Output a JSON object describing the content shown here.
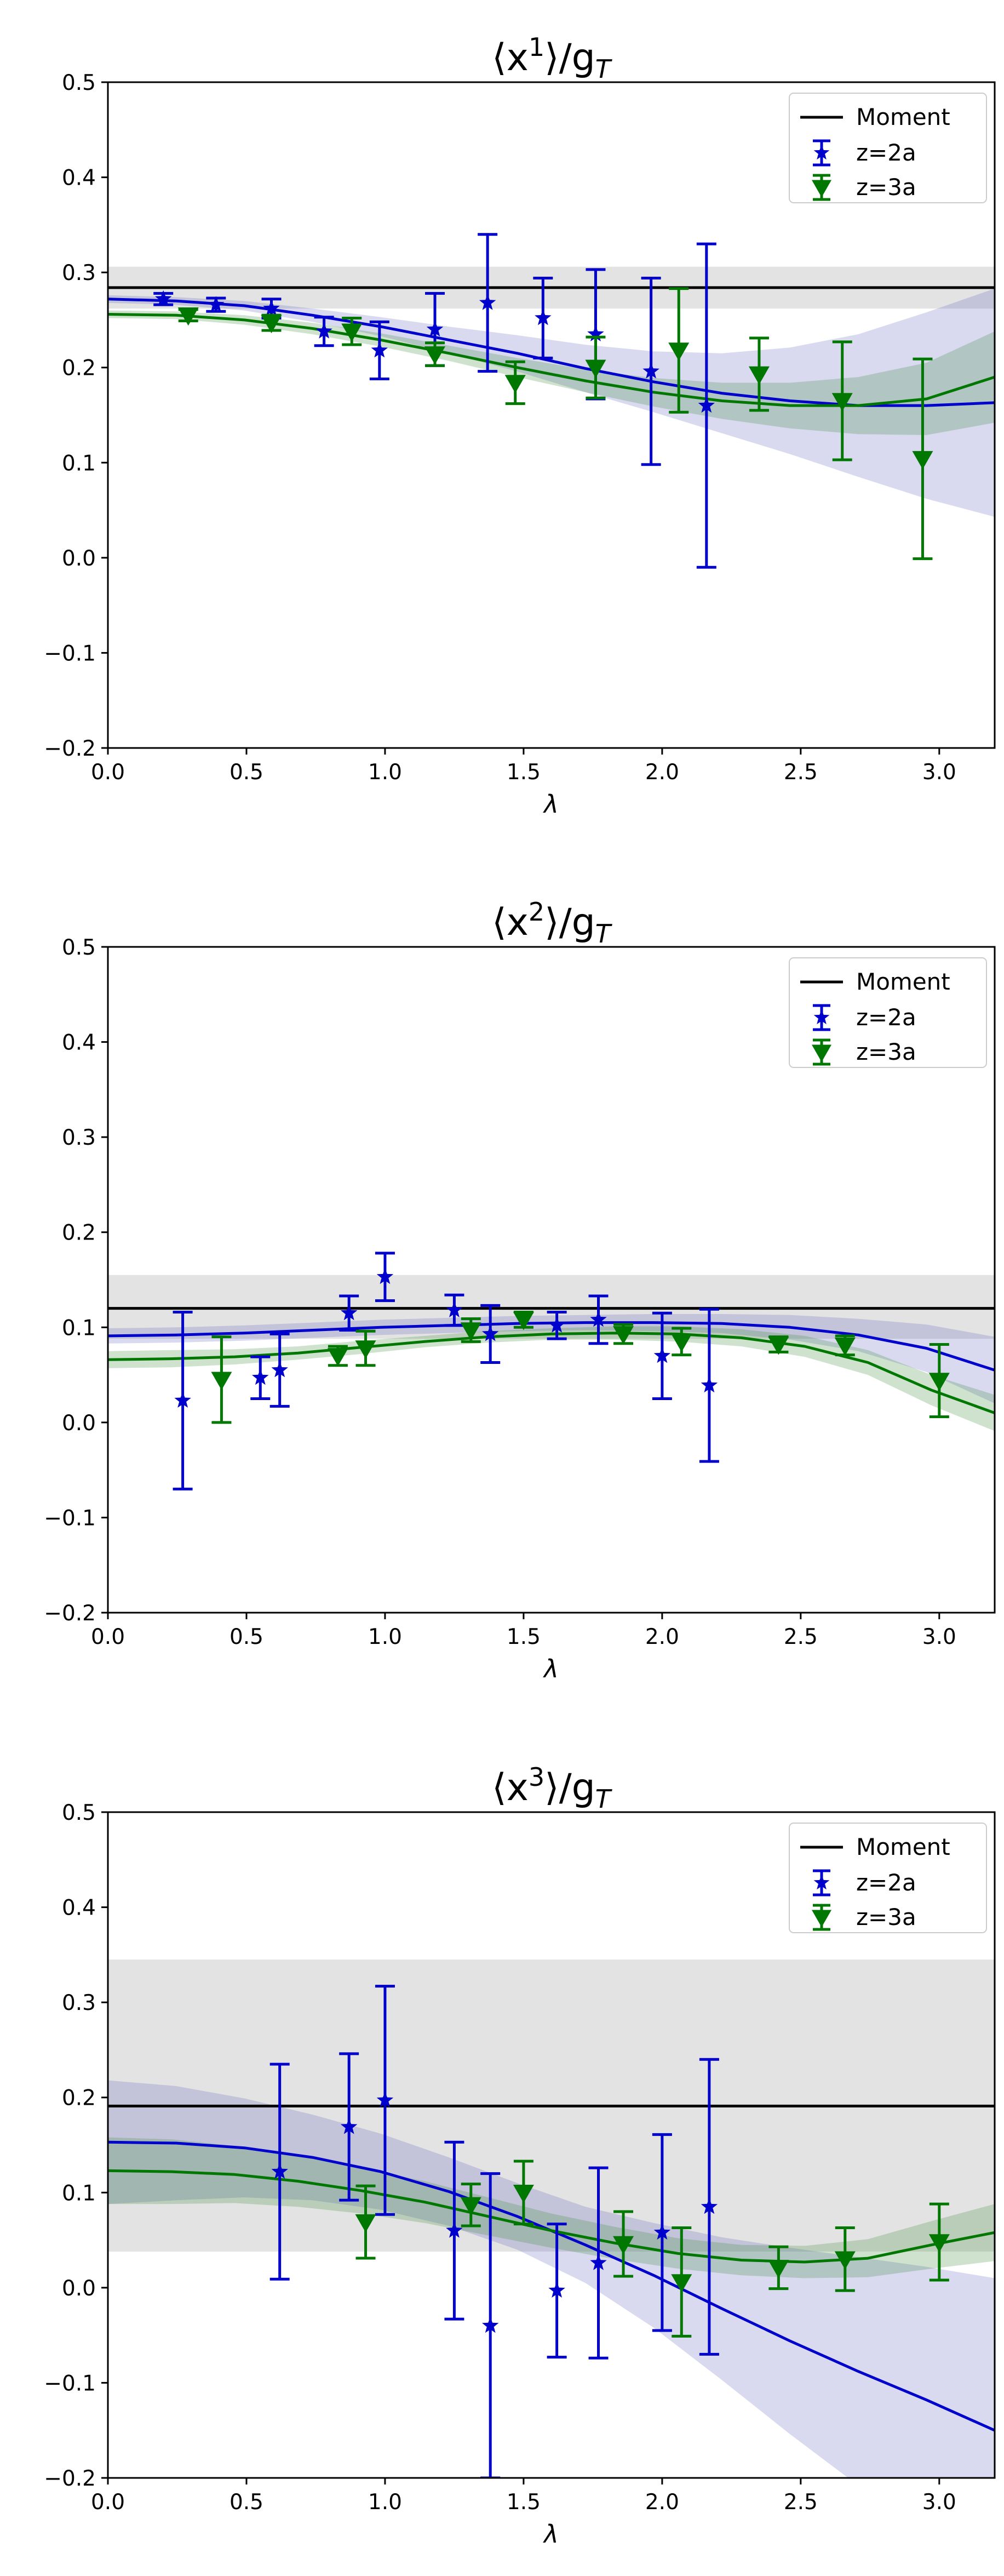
{
  "chart_data": [
    {
      "type": "errorbar",
      "title": "⟨x¹⟩/g_T",
      "title_parts": {
        "pre": "⟨x",
        "sup": "1",
        "mid": "⟩/g",
        "sub": "T"
      },
      "xlabel": "λ",
      "xlim": [
        0.0,
        3.2
      ],
      "ylim": [
        -0.2,
        0.5
      ],
      "xticks": [
        0.0,
        0.5,
        1.0,
        1.5,
        2.0,
        2.5,
        3.0
      ],
      "yticks": [
        -0.2,
        -0.1,
        0.0,
        0.1,
        0.2,
        0.3,
        0.4,
        0.5
      ],
      "moment": {
        "value": 0.284,
        "band": [
          0.262,
          0.306
        ]
      },
      "legend": {
        "moment": "Moment",
        "z2": "z=2a",
        "z3": "z=3a",
        "position": "top-right"
      },
      "series": [
        {
          "name": "z=2a",
          "color": "#0000cc",
          "marker": "star",
          "points": [
            {
              "x": 0.2,
              "y": 0.272,
              "err": 0.006
            },
            {
              "x": 0.39,
              "y": 0.266,
              "err": 0.007
            },
            {
              "x": 0.59,
              "y": 0.262,
              "err": 0.01
            },
            {
              "x": 0.78,
              "y": 0.238,
              "err": 0.015
            },
            {
              "x": 0.98,
              "y": 0.218,
              "err": 0.03
            },
            {
              "x": 1.18,
              "y": 0.24,
              "err": 0.038
            },
            {
              "x": 1.37,
              "y": 0.268,
              "err": 0.072
            },
            {
              "x": 1.57,
              "y": 0.252,
              "err": 0.042
            },
            {
              "x": 1.76,
              "y": 0.235,
              "err": 0.068
            },
            {
              "x": 1.96,
              "y": 0.196,
              "err": 0.098
            },
            {
              "x": 2.16,
              "y": 0.16,
              "err": 0.17
            }
          ],
          "fit": [
            0.272,
            0.27,
            0.265,
            0.255,
            0.243,
            0.229,
            0.215,
            0.199,
            0.185,
            0.173,
            0.165,
            0.16,
            0.16,
            0.163
          ],
          "fit_err": [
            0.004,
            0.004,
            0.005,
            0.007,
            0.01,
            0.014,
            0.019,
            0.025,
            0.032,
            0.042,
            0.056,
            0.075,
            0.098,
            0.12
          ]
        },
        {
          "name": "z=3a",
          "color": "#007700",
          "marker": "triangle-down",
          "points": [
            {
              "x": 0.29,
              "y": 0.255,
              "err": 0.006
            },
            {
              "x": 0.59,
              "y": 0.247,
              "err": 0.008
            },
            {
              "x": 0.88,
              "y": 0.238,
              "err": 0.014
            },
            {
              "x": 1.18,
              "y": 0.214,
              "err": 0.012
            },
            {
              "x": 1.47,
              "y": 0.184,
              "err": 0.022
            },
            {
              "x": 1.76,
              "y": 0.2,
              "err": 0.032
            },
            {
              "x": 2.06,
              "y": 0.218,
              "err": 0.065
            },
            {
              "x": 2.35,
              "y": 0.193,
              "err": 0.038
            },
            {
              "x": 2.65,
              "y": 0.165,
              "err": 0.062
            },
            {
              "x": 2.94,
              "y": 0.104,
              "err": 0.105
            }
          ],
          "fit": [
            0.256,
            0.255,
            0.25,
            0.241,
            0.229,
            0.215,
            0.2,
            0.186,
            0.174,
            0.165,
            0.16,
            0.16,
            0.167,
            0.19
          ],
          "fit_err": [
            0.004,
            0.004,
            0.005,
            0.006,
            0.007,
            0.008,
            0.01,
            0.012,
            0.015,
            0.019,
            0.024,
            0.03,
            0.038,
            0.048
          ]
        }
      ]
    },
    {
      "type": "errorbar",
      "title": "⟨x²⟩/g_T",
      "title_parts": {
        "pre": "⟨x",
        "sup": "2",
        "mid": "⟩/g",
        "sub": "T"
      },
      "xlabel": "λ",
      "xlim": [
        0.0,
        3.2
      ],
      "ylim": [
        -0.2,
        0.5
      ],
      "xticks": [
        0.0,
        0.5,
        1.0,
        1.5,
        2.0,
        2.5,
        3.0
      ],
      "yticks": [
        -0.2,
        -0.1,
        0.0,
        0.1,
        0.2,
        0.3,
        0.4,
        0.5
      ],
      "moment": {
        "value": 0.12,
        "band": [
          0.088,
          0.155
        ]
      },
      "legend": {
        "moment": "Moment",
        "z2": "z=2a",
        "z3": "z=3a",
        "position": "top-right"
      },
      "series": [
        {
          "name": "z=2a",
          "color": "#0000cc",
          "marker": "star",
          "points": [
            {
              "x": 0.27,
              "y": 0.023,
              "err": 0.093
            },
            {
              "x": 0.55,
              "y": 0.047,
              "err": 0.022
            },
            {
              "x": 0.62,
              "y": 0.055,
              "err": 0.038
            },
            {
              "x": 0.87,
              "y": 0.115,
              "err": 0.018
            },
            {
              "x": 1.0,
              "y": 0.153,
              "err": 0.025
            },
            {
              "x": 1.25,
              "y": 0.118,
              "err": 0.016
            },
            {
              "x": 1.38,
              "y": 0.093,
              "err": 0.03
            },
            {
              "x": 1.62,
              "y": 0.102,
              "err": 0.014
            },
            {
              "x": 1.77,
              "y": 0.108,
              "err": 0.025
            },
            {
              "x": 2.0,
              "y": 0.07,
              "err": 0.045
            },
            {
              "x": 2.17,
              "y": 0.039,
              "err": 0.08
            }
          ],
          "fit": [
            0.091,
            0.092,
            0.094,
            0.097,
            0.1,
            0.102,
            0.104,
            0.105,
            0.105,
            0.104,
            0.1,
            0.092,
            0.078,
            0.055
          ],
          "fit_err": [
            0.008,
            0.008,
            0.008,
            0.008,
            0.008,
            0.008,
            0.008,
            0.008,
            0.009,
            0.01,
            0.013,
            0.017,
            0.025,
            0.035
          ]
        },
        {
          "name": "z=3a",
          "color": "#007700",
          "marker": "triangle-down",
          "points": [
            {
              "x": 0.41,
              "y": 0.045,
              "err": 0.045
            },
            {
              "x": 0.83,
              "y": 0.07,
              "err": 0.01
            },
            {
              "x": 0.93,
              "y": 0.078,
              "err": 0.018
            },
            {
              "x": 1.31,
              "y": 0.097,
              "err": 0.012
            },
            {
              "x": 1.5,
              "y": 0.108,
              "err": 0.008
            },
            {
              "x": 1.86,
              "y": 0.093,
              "err": 0.01
            },
            {
              "x": 2.07,
              "y": 0.085,
              "err": 0.014
            },
            {
              "x": 2.42,
              "y": 0.082,
              "err": 0.008
            },
            {
              "x": 2.66,
              "y": 0.081,
              "err": 0.01
            },
            {
              "x": 3.0,
              "y": 0.044,
              "err": 0.038
            }
          ],
          "fit": [
            0.066,
            0.067,
            0.069,
            0.073,
            0.079,
            0.085,
            0.09,
            0.093,
            0.094,
            0.093,
            0.089,
            0.08,
            0.063,
            0.034,
            0.01
          ],
          "fit_err": [
            0.009,
            0.009,
            0.008,
            0.007,
            0.007,
            0.006,
            0.006,
            0.006,
            0.007,
            0.008,
            0.009,
            0.011,
            0.013,
            0.016,
            0.019
          ]
        }
      ]
    },
    {
      "type": "errorbar",
      "title": "⟨x³⟩/g_T",
      "title_parts": {
        "pre": "⟨x",
        "sup": "3",
        "mid": "⟩/g",
        "sub": "T"
      },
      "xlabel": "λ",
      "xlim": [
        0.0,
        3.2
      ],
      "ylim": [
        -0.2,
        0.5
      ],
      "xticks": [
        0.0,
        0.5,
        1.0,
        1.5,
        2.0,
        2.5,
        3.0
      ],
      "yticks": [
        -0.2,
        -0.1,
        0.0,
        0.1,
        0.2,
        0.3,
        0.4,
        0.5
      ],
      "moment": {
        "value": 0.191,
        "band": [
          0.038,
          0.345
        ]
      },
      "legend": {
        "moment": "Moment",
        "z2": "z=2a",
        "z3": "z=3a",
        "position": "top-right"
      },
      "series": [
        {
          "name": "z=2a",
          "color": "#0000cc",
          "marker": "star",
          "points": [
            {
              "x": 0.62,
              "y": 0.122,
              "err": 0.113
            },
            {
              "x": 0.87,
              "y": 0.169,
              "err": 0.077
            },
            {
              "x": 1.0,
              "y": 0.197,
              "err": 0.12
            },
            {
              "x": 1.25,
              "y": 0.06,
              "err": 0.093
            },
            {
              "x": 1.38,
              "y": -0.04,
              "err": 0.16
            },
            {
              "x": 1.62,
              "y": -0.003,
              "err": 0.07
            },
            {
              "x": 1.77,
              "y": 0.026,
              "err": 0.1
            },
            {
              "x": 2.0,
              "y": 0.058,
              "err": 0.103
            },
            {
              "x": 2.17,
              "y": 0.085,
              "err": 0.155
            }
          ],
          "fit": [
            0.153,
            0.152,
            0.147,
            0.137,
            0.122,
            0.101,
            0.075,
            0.045,
            0.013,
            -0.022,
            -0.056,
            -0.088,
            -0.118,
            -0.15
          ],
          "fit_err": [
            0.065,
            0.06,
            0.052,
            0.045,
            0.04,
            0.036,
            0.035,
            0.04,
            0.055,
            0.075,
            0.098,
            0.12,
            0.14,
            0.16
          ]
        },
        {
          "name": "z=3a",
          "color": "#007700",
          "marker": "triangle-down",
          "points": [
            {
              "x": 0.93,
              "y": 0.069,
              "err": 0.038
            },
            {
              "x": 1.31,
              "y": 0.087,
              "err": 0.022
            },
            {
              "x": 1.5,
              "y": 0.1,
              "err": 0.033
            },
            {
              "x": 1.86,
              "y": 0.046,
              "err": 0.034
            },
            {
              "x": 2.07,
              "y": 0.006,
              "err": 0.057
            },
            {
              "x": 2.42,
              "y": 0.021,
              "err": 0.022
            },
            {
              "x": 2.66,
              "y": 0.03,
              "err": 0.033
            },
            {
              "x": 3.0,
              "y": 0.048,
              "err": 0.04
            }
          ],
          "fit": [
            0.123,
            0.122,
            0.119,
            0.112,
            0.102,
            0.09,
            0.075,
            0.06,
            0.047,
            0.036,
            0.029,
            0.027,
            0.031,
            0.045,
            0.058
          ],
          "fit_err": [
            0.035,
            0.034,
            0.03,
            0.027,
            0.024,
            0.022,
            0.02,
            0.018,
            0.017,
            0.016,
            0.016,
            0.017,
            0.02,
            0.025,
            0.03
          ]
        }
      ]
    }
  ]
}
